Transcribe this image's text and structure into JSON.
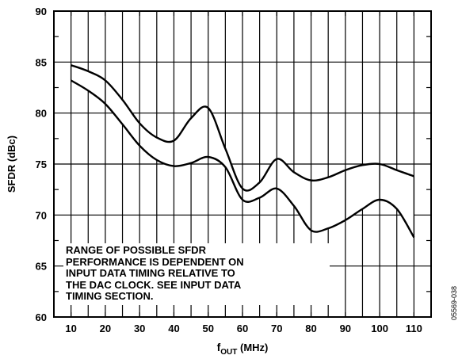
{
  "chart_data": {
    "type": "area",
    "xlabel_main": "f",
    "xlabel_sub": "OUT",
    "xlabel_unit": " (MHz)",
    "ylabel": "SFDR (dBc)",
    "xlim": [
      5,
      115
    ],
    "ylim": [
      60,
      90
    ],
    "x_ticks": [
      10,
      20,
      30,
      40,
      50,
      60,
      70,
      80,
      90,
      100,
      110
    ],
    "y_ticks": [
      60,
      65,
      70,
      75,
      80,
      85,
      90
    ],
    "grid": true,
    "series": [
      {
        "x": [
          10,
          15,
          20,
          25,
          30,
          35,
          40,
          45,
          50,
          55,
          60,
          65,
          70,
          75,
          80,
          85,
          90,
          95,
          100,
          105,
          110
        ],
        "values": [
          84.7,
          84.1,
          83.2,
          81.3,
          79.0,
          77.6,
          77.3,
          79.5,
          80.5,
          76.5,
          72.6,
          73.2,
          75.5,
          74.2,
          73.4,
          73.7,
          74.4,
          74.9,
          75.0,
          74.4,
          73.8
        ]
      },
      {
        "x": [
          10,
          15,
          20,
          25,
          30,
          35,
          40,
          45,
          50,
          55,
          60,
          65,
          70,
          75,
          80,
          85,
          90,
          95,
          100,
          105,
          110
        ],
        "values": [
          83.2,
          82.2,
          80.9,
          78.9,
          76.8,
          75.4,
          74.8,
          75.1,
          75.7,
          74.7,
          71.5,
          71.7,
          72.6,
          70.9,
          68.5,
          68.7,
          69.5,
          70.6,
          71.5,
          70.6,
          67.8
        ]
      }
    ],
    "range_markers_x": [
      10,
      20,
      30,
      40,
      50,
      60,
      70,
      80,
      90,
      100,
      110
    ],
    "annotation": [
      "RANGE OF POSSIBLE SFDR",
      "PERFORMANCE IS DEPENDENT ON",
      "INPUT DATA TIMING RELATIVE TO",
      "THE DAC CLOCK. SEE INPUT DATA",
      "TIMING SECTION."
    ],
    "figure_id": "05569-038"
  }
}
